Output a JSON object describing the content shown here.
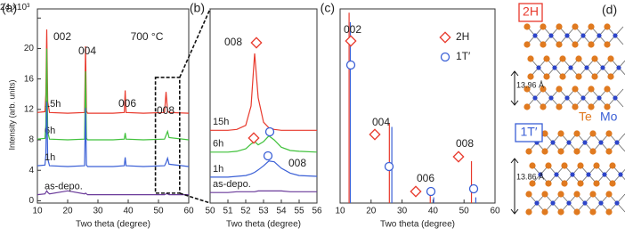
{
  "chart_data": [
    {
      "type": "line",
      "label": "(a)",
      "xlabel": "Two theta (degree)",
      "ylabel": "Intensity (arb. units)",
      "x": [
        10,
        12.5,
        12.8,
        13.1,
        13.4,
        14,
        20,
        25.6,
        25.9,
        26.2,
        26.6,
        35,
        38.7,
        39,
        39.3,
        45,
        52,
        52.5,
        53,
        53.5,
        60
      ],
      "series": [
        {
          "name": "15h",
          "color": "#e8392c",
          "values": [
            11.6,
            11.7,
            14,
            22.5,
            13,
            11.6,
            11.5,
            11.6,
            20.3,
            11.8,
            11.5,
            11.5,
            11.6,
            14.5,
            11.6,
            11.5,
            11.6,
            14.3,
            11.8,
            11.6,
            11.5
          ]
        },
        {
          "name": "6h",
          "color": "#3fc13a",
          "values": [
            8.1,
            8.2,
            10,
            20,
            9,
            8.1,
            8,
            8.1,
            17,
            8.2,
            8,
            8,
            8.1,
            8.9,
            8.1,
            8,
            8.1,
            8.6,
            9.1,
            8.3,
            8
          ]
        },
        {
          "name": "1h",
          "color": "#3a5fd6",
          "values": [
            4.6,
            4.7,
            6,
            13,
            5.5,
            4.6,
            4.5,
            4.6,
            12.2,
            4.7,
            4.5,
            4.5,
            4.6,
            5.7,
            4.6,
            4.5,
            4.6,
            5,
            5.6,
            4.8,
            4.5
          ]
        },
        {
          "name": "as-depo.",
          "color": "#6a3a9a",
          "values": [
            0.8,
            0.9,
            1.1,
            1.3,
            1.1,
            0.9,
            1.3,
            0.9,
            1.0,
            0.9,
            0.8,
            0.8,
            0.8,
            0.8,
            0.8,
            0.8,
            0.8,
            0.9,
            0.9,
            0.8,
            0.8
          ]
        }
      ],
      "annotations": [
        "002",
        "004",
        "006",
        "008",
        "700 °C"
      ],
      "xlim": [
        10,
        60
      ],
      "xticks": [
        10,
        20,
        30,
        40,
        50,
        60
      ],
      "ylim": [
        -0.3,
        25.2
      ],
      "yticks": [
        0,
        4,
        8,
        12,
        16,
        20,
        {
          "value": 24,
          "label": "24 x10³"
        }
      ]
    },
    {
      "type": "line",
      "label": "(b)",
      "xlabel": "Two theta (degree)",
      "x": [
        50,
        51,
        51.5,
        52,
        52.3,
        52.5,
        52.7,
        53,
        53.3,
        53.6,
        54,
        54.5,
        55,
        56
      ],
      "series": [
        {
          "name": "15h",
          "color": "#e8392c",
          "values": [
            9.0,
            9.0,
            9.1,
            9.6,
            12,
            18.5,
            13,
            10,
            9.3,
            9.1,
            9.0,
            9.0,
            9.0,
            9.0
          ]
        },
        {
          "name": "6h",
          "color": "#3fc13a",
          "values": [
            6.3,
            6.3,
            6.4,
            6.7,
            7.3,
            7.6,
            7.2,
            7.6,
            8.3,
            7.8,
            6.9,
            6.5,
            6.4,
            6.3
          ]
        },
        {
          "name": "1h",
          "color": "#3a5fd6",
          "values": [
            3.2,
            3.2,
            3.3,
            3.4,
            3.6,
            3.8,
            4.1,
            4.6,
            5.2,
            5.1,
            4.3,
            3.7,
            3.4,
            3.3
          ]
        },
        {
          "name": "as-depo.",
          "color": "#6a3a9a",
          "values": [
            1.3,
            1.3,
            1.4,
            1.4,
            1.4,
            1.4,
            1.5,
            1.5,
            1.5,
            1.5,
            1.5,
            1.4,
            1.4,
            1.4
          ]
        }
      ],
      "annotations": [
        "008",
        "008"
      ],
      "xlim": [
        50,
        56
      ],
      "xticks": [
        50,
        51,
        52,
        53,
        54,
        55,
        56
      ],
      "ylim": [
        0,
        24
      ]
    },
    {
      "type": "stick",
      "label": "(c)",
      "xlabel": "Two theta (degree)",
      "series": [
        {
          "name": "1T′",
          "color": "#3a5fd6",
          "x": [
            13.3,
            26.7,
            40.2,
            53.8
          ],
          "values": [
            95,
            40,
            3,
            3
          ]
        },
        {
          "name": "2H",
          "color": "#e8392c",
          "x": [
            12.9,
            25.9,
            39.1,
            52.4
          ],
          "values": [
            100,
            42,
            4,
            22
          ]
        }
      ],
      "annotations": [
        "002",
        "004",
        "006",
        "008"
      ],
      "xlim": [
        10,
        60
      ],
      "xticks": [
        10,
        20,
        30,
        40,
        50,
        60
      ],
      "ylim": [
        0,
        102
      ]
    }
  ],
  "structure": {
    "label": "(d)",
    "phase_top": "2H",
    "phase_bottom": "1T′",
    "atom_te": "Te",
    "atom_mo": "Mo",
    "spacing_top": "13.96 Å",
    "spacing_bottom": "13.86 Å"
  }
}
